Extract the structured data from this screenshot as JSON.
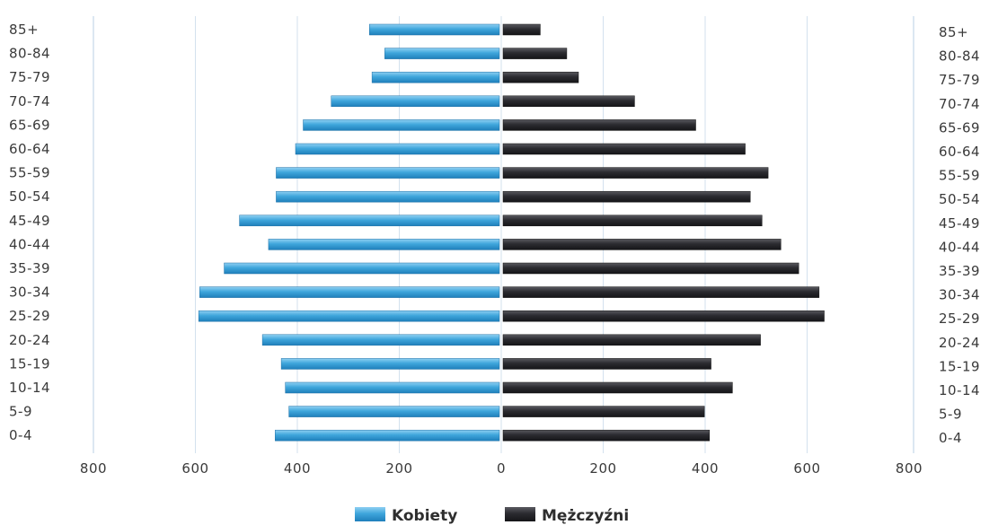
{
  "chart_data": {
    "type": "bar",
    "orientation": "horizontal",
    "subtype": "population-pyramid",
    "categories": [
      "85+",
      "80-84",
      "75-79",
      "70-74",
      "65-69",
      "60-64",
      "55-59",
      "50-54",
      "45-49",
      "40-44",
      "35-39",
      "30-34",
      "25-29",
      "20-24",
      "15-19",
      "10-14",
      "5-9",
      "0-4"
    ],
    "series": [
      {
        "name": "Kobiety",
        "side": "left",
        "color": "#3fa6dc",
        "values": [
          255,
          225,
          250,
          330,
          385,
          400,
          438,
          438,
          510,
          453,
          540,
          588,
          590,
          465,
          428,
          420,
          413,
          440
        ]
      },
      {
        "name": "Mężczyźni",
        "side": "right",
        "color": "#2b2b30",
        "values": [
          73,
          125,
          148,
          258,
          378,
          475,
          520,
          485,
          508,
          545,
          580,
          620,
          630,
          505,
          408,
          450,
          395,
          405
        ]
      }
    ],
    "x_ticks": [
      "800",
      "600",
      "400",
      "200",
      "0",
      "200",
      "400",
      "600",
      "800"
    ],
    "xlim": [
      -800,
      800
    ],
    "grid": "vertical",
    "legend_position": "bottom-center"
  }
}
